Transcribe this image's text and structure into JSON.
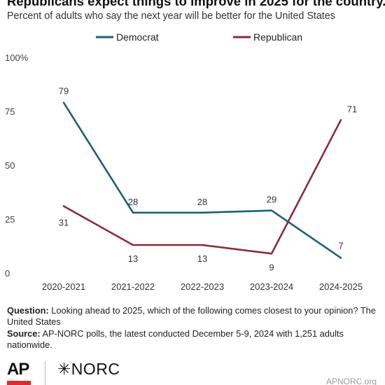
{
  "header": {
    "title": "Republicans expect things to improve in 2025 for the country.",
    "subtitle": "Percent of adults who say the next year will be better for the United States"
  },
  "chart_data": {
    "type": "line",
    "categories": [
      "2020-2021",
      "2021-2022",
      "2022-2023",
      "2023-2024",
      "2024-2025"
    ],
    "series": [
      {
        "name": "Democrat",
        "color": "#1f5f7a",
        "values": [
          79,
          28,
          28,
          29,
          7
        ]
      },
      {
        "name": "Republican",
        "color": "#8b2a3a",
        "values": [
          31,
          13,
          13,
          9,
          71
        ]
      }
    ],
    "data_labels": {
      "Democrat": [
        "79",
        "28",
        "28",
        "29",
        "7"
      ],
      "Republican": [
        "31",
        "13",
        "13",
        "9",
        "71"
      ]
    },
    "yticks": [
      0,
      25,
      50,
      75,
      100
    ],
    "ytick_labels": [
      "0",
      "25",
      "50",
      "75",
      "100%"
    ],
    "ylim": [
      0,
      100
    ],
    "legend_position": "top",
    "grid": false
  },
  "notes": {
    "question_label": "Question:",
    "question_text": "Looking ahead to 2025, which of the following comes closest to your opinion? The United States",
    "source_label": "Source:",
    "source_text": "AP-NORC polls, the latest conducted December 5-9, 2024 with 1,251 adults nationwide."
  },
  "footer": {
    "ap_logo": "AP",
    "norc_logo": "✳NORC",
    "url": "APNORC.org"
  }
}
